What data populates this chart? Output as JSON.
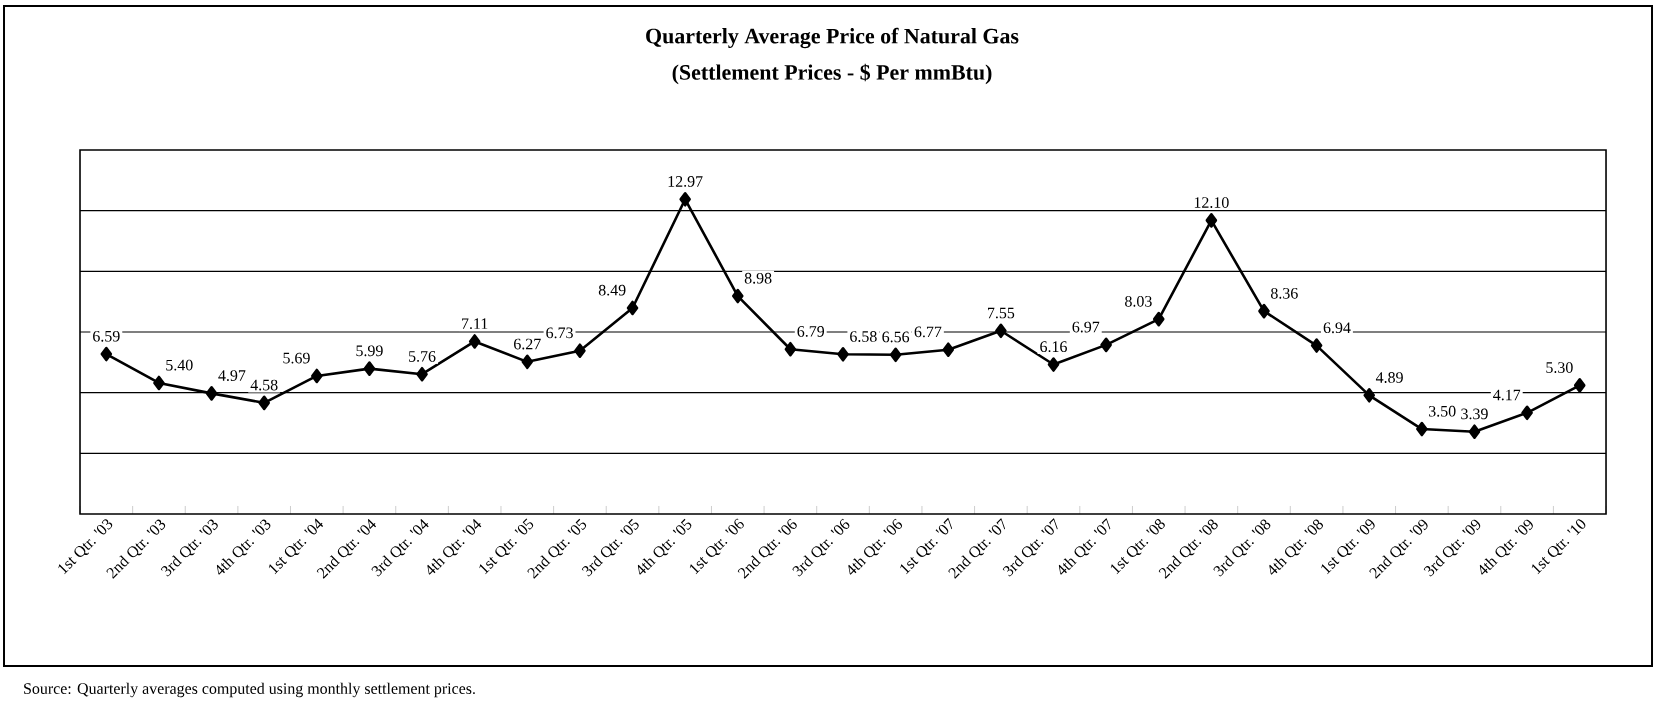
{
  "chart_data": {
    "type": "line",
    "title": "Quarterly Average Price of Natural Gas",
    "subtitle": "(Settlement Prices - $ Per mmBtu)",
    "categories": [
      "1st Qtr. '03",
      "2nd Qtr. '03",
      "3rd Qtr. '03",
      "4th Qtr. '03",
      "1st Qtr. '04",
      "2nd Qtr. '04",
      "3rd Qtr. '04",
      "4th Qtr. '04",
      "1st Qtr. '05",
      "2nd Qtr. '05",
      "3rd Qtr. '05",
      "4th Qtr. '05",
      "1st Qtr. '06",
      "2nd Qtr. '06",
      "3rd Qtr. '06",
      "4th Qtr. '06",
      "1st Qtr. '07",
      "2nd Qtr. '07",
      "3rd Qtr. '07",
      "4th Qtr. '07",
      "1st Qtr. '08",
      "2nd Qtr. '08",
      "3rd Qtr. '08",
      "4th Qtr. '08",
      "1st Qtr. '09",
      "2nd Qtr. '09",
      "3rd Qtr. '09",
      "4th Qtr. '09",
      "1st Qtr. '10"
    ],
    "values": [
      6.59,
      5.4,
      4.97,
      4.58,
      5.69,
      5.99,
      5.76,
      7.11,
      6.27,
      6.73,
      8.49,
      12.97,
      8.98,
      6.79,
      6.58,
      6.56,
      6.77,
      7.55,
      6.16,
      6.97,
      8.03,
      12.1,
      8.36,
      6.94,
      4.89,
      3.5,
      3.39,
      4.17,
      5.3
    ],
    "value_labels": [
      "6.59",
      "5.40",
      "4.97",
      "4.58",
      "5.69",
      "5.99",
      "5.76",
      "7.11",
      "6.27",
      "6.73",
      "8.49",
      "12.97",
      "8.98",
      "6.79",
      "6.58",
      "6.56",
      "6.77",
      "7.55",
      "6.16",
      "6.97",
      "8.03",
      "12.10",
      "8.36",
      "6.94",
      "4.89",
      "3.50",
      "3.39",
      "4.17",
      "5.30"
    ],
    "color": "#000000",
    "marker": "diamond",
    "line_style": "solid",
    "grid": "y",
    "ylim": [
      0,
      15
    ],
    "yticks": [
      {
        "value": 2.5,
        "label": null
      },
      {
        "value": 5,
        "label": null
      },
      {
        "value": 7.5,
        "label": null
      },
      {
        "value": 10,
        "label": null
      },
      {
        "value": 12.5,
        "label": null
      }
    ],
    "tick_labels": "x",
    "annotations": [
      "Source:  Quarterly averages computed using monthly settlement prices."
    ]
  }
}
